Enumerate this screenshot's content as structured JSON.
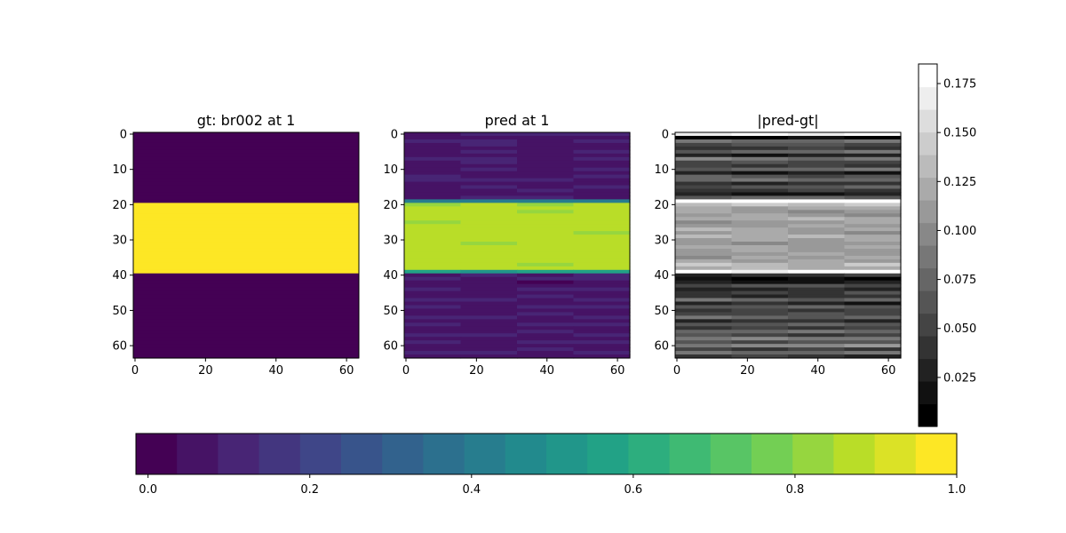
{
  "chart_data": [
    {
      "type": "heatmap",
      "title": "gt: br002 at 1",
      "x_ticks": [
        "0",
        "20",
        "40",
        "60"
      ],
      "y_ticks": [
        "0",
        "10",
        "20",
        "30",
        "40",
        "50",
        "60"
      ],
      "xlim": [
        -0.5,
        63.5
      ],
      "ylim": [
        -0.5,
        63.5
      ],
      "colormap": "viridis",
      "rows": 64,
      "cols": 64,
      "row_values": [
        0,
        0,
        0,
        0,
        0,
        0,
        0,
        0,
        0,
        0,
        0,
        0,
        0,
        0,
        0,
        0,
        0,
        0,
        0,
        0,
        1,
        1,
        1,
        1,
        1,
        1,
        1,
        1,
        1,
        1,
        1,
        1,
        1,
        1,
        1,
        1,
        1,
        1,
        1,
        1,
        0,
        0,
        0,
        0,
        0,
        0,
        0,
        0,
        0,
        0,
        0,
        0,
        0,
        0,
        0,
        0,
        0,
        0,
        0,
        0,
        0,
        0,
        0,
        0
      ]
    },
    {
      "type": "heatmap",
      "title": "pred at 1",
      "x_ticks": [
        "0",
        "20",
        "40",
        "60"
      ],
      "y_ticks": [
        "0",
        "10",
        "20",
        "30",
        "40",
        "50",
        "60"
      ],
      "xlim": [
        -0.5,
        63.5
      ],
      "ylim": [
        -0.5,
        63.5
      ],
      "colormap": "viridis",
      "rows": 64,
      "cols": 64,
      "row_values": [
        0.1,
        0.06,
        0.09,
        0.08,
        0.07,
        0.09,
        0.06,
        0.1,
        0.08,
        0.07,
        0.09,
        0.06,
        0.08,
        0.1,
        0.07,
        0.09,
        0.08,
        0.06,
        0.09,
        0.4,
        0.85,
        0.88,
        0.86,
        0.88,
        0.87,
        0.86,
        0.88,
        0.87,
        0.86,
        0.88,
        0.87,
        0.86,
        0.88,
        0.87,
        0.86,
        0.88,
        0.87,
        0.86,
        0.88,
        0.55,
        0.08,
        0.1,
        0.05,
        0.07,
        0.09,
        0.06,
        0.08,
        0.1,
        0.07,
        0.09,
        0.06,
        0.08,
        0.1,
        0.07,
        0.09,
        0.06,
        0.08,
        0.1,
        0.07,
        0.09,
        0.06,
        0.08,
        0.1,
        0.07
      ]
    },
    {
      "type": "heatmap",
      "title": "|pred-gt|",
      "x_ticks": [
        "0",
        "20",
        "40",
        "60"
      ],
      "y_ticks": [
        "0",
        "10",
        "20",
        "30",
        "40",
        "50",
        "60"
      ],
      "xlim": [
        -0.5,
        63.5
      ],
      "ylim": [
        -0.5,
        63.5
      ],
      "colormap": "gray",
      "rows": 64,
      "cols": 64,
      "row_values": [
        0.17,
        0.01,
        0.08,
        0.06,
        0.04,
        0.075,
        0.03,
        0.085,
        0.055,
        0.045,
        0.075,
        0.025,
        0.065,
        0.08,
        0.035,
        0.065,
        0.045,
        0.02,
        0.07,
        0.18,
        0.14,
        0.12,
        0.11,
        0.11,
        0.12,
        0.11,
        0.115,
        0.12,
        0.11,
        0.125,
        0.115,
        0.11,
        0.118,
        0.115,
        0.11,
        0.112,
        0.118,
        0.135,
        0.125,
        0.175,
        0.04,
        0.015,
        0.02,
        0.06,
        0.03,
        0.05,
        0.04,
        0.075,
        0.03,
        0.065,
        0.045,
        0.055,
        0.075,
        0.035,
        0.065,
        0.045,
        0.08,
        0.05,
        0.09,
        0.06,
        0.1,
        0.05,
        0.08,
        0.04
      ]
    },
    {
      "type": "colorbar",
      "colormap": "gray",
      "orientation": "vertical",
      "range": [
        0.0,
        0.185
      ],
      "levels": 16,
      "tick_values": [
        0.025,
        0.05,
        0.075,
        0.1,
        0.125,
        0.15,
        0.175
      ],
      "tick_labels": [
        "0.025",
        "0.050",
        "0.075",
        "0.100",
        "0.125",
        "0.150",
        "0.175"
      ]
    },
    {
      "type": "colorbar",
      "colormap": "viridis",
      "orientation": "horizontal",
      "range": [
        -0.015,
        1.0
      ],
      "levels": 20,
      "tick_values": [
        0.0,
        0.2,
        0.4,
        0.6,
        0.8,
        1.0
      ],
      "tick_labels": [
        "0.0",
        "0.2",
        "0.4",
        "0.6",
        "0.8",
        "1.0"
      ]
    }
  ]
}
